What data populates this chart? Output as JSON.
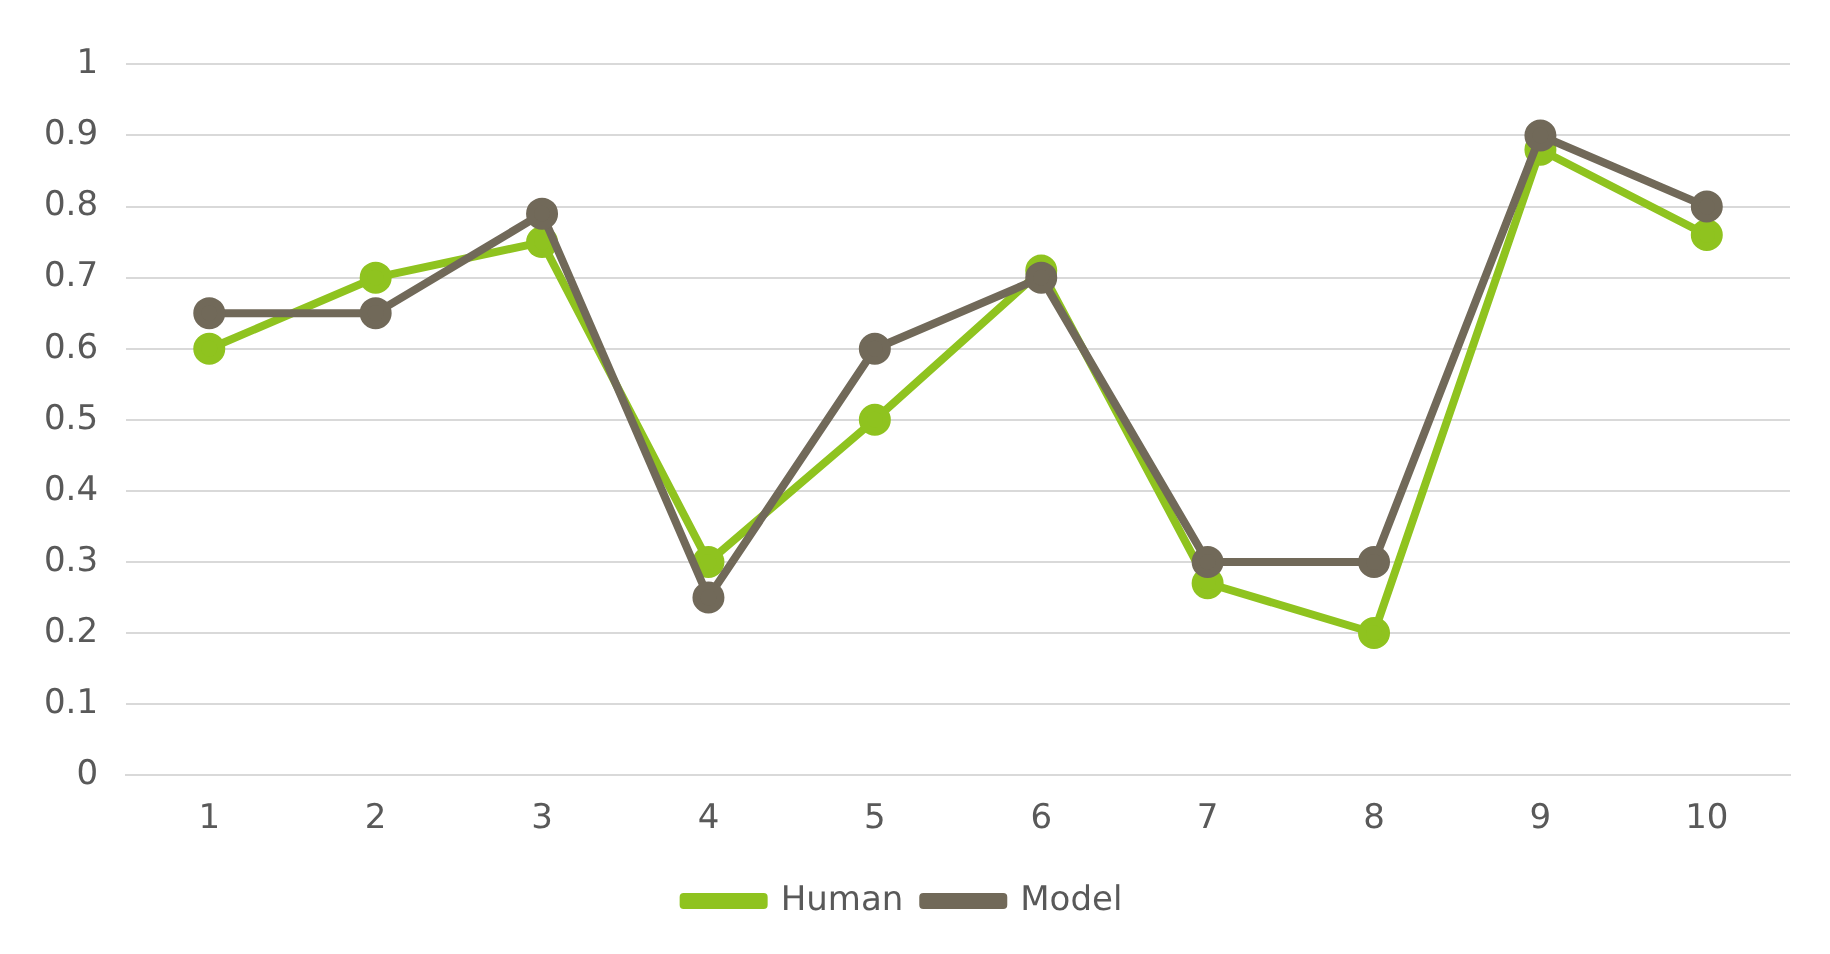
{
  "chart_data": {
    "type": "line",
    "categories": [
      "1",
      "2",
      "3",
      "4",
      "5",
      "6",
      "7",
      "8",
      "9",
      "10"
    ],
    "series": [
      {
        "name": "Human",
        "color": "#8fc31f",
        "values": [
          0.6,
          0.7,
          0.75,
          0.3,
          0.5,
          0.71,
          0.27,
          0.2,
          0.88,
          0.76
        ]
      },
      {
        "name": "Model",
        "color": "#716959",
        "values": [
          0.65,
          0.65,
          0.79,
          0.25,
          0.6,
          0.7,
          0.3,
          0.3,
          0.9,
          0.8
        ]
      }
    ],
    "ylim": [
      0,
      1
    ],
    "yticks": [
      0,
      0.1,
      0.2,
      0.3,
      0.4,
      0.5,
      0.6,
      0.7,
      0.8,
      0.9,
      1
    ],
    "grid": "y",
    "legend": "bottom",
    "marker": "circle",
    "line_style": "solid"
  }
}
